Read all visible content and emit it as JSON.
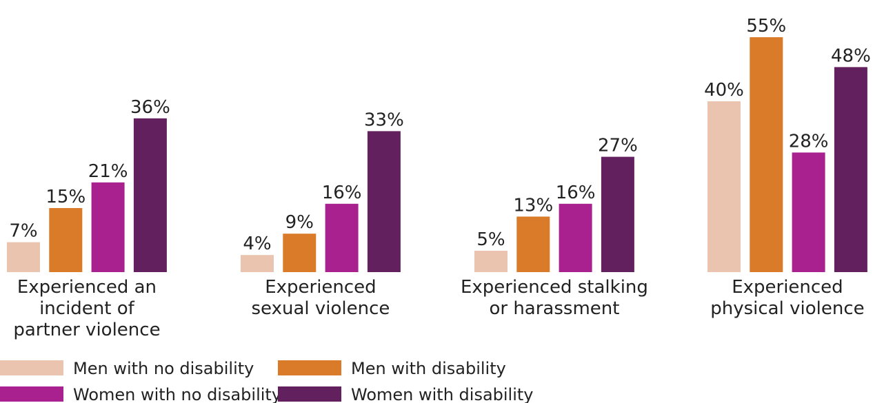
{
  "chart_data": {
    "type": "bar",
    "title": "",
    "xlabel": "",
    "ylabel": "",
    "ylim": [
      0,
      55
    ],
    "grid": false,
    "legend_position": "bottom",
    "categories": [
      [
        "Experienced an",
        "incident of",
        "partner violence"
      ],
      [
        "Experienced",
        "sexual violence"
      ],
      [
        "Experienced stalking",
        "or harassment"
      ],
      [
        "Experienced",
        "physical violence"
      ]
    ],
    "series": [
      {
        "name": "Men with no disability",
        "color": "#EBC4B0",
        "values": [
          7,
          4,
          5,
          40
        ]
      },
      {
        "name": "Men with disability",
        "color": "#D97B28",
        "values": [
          15,
          9,
          13,
          55
        ]
      },
      {
        "name": "Women with no disability",
        "color": "#A8218E",
        "values": [
          21,
          16,
          16,
          28
        ]
      },
      {
        "name": "Women with disability",
        "color": "#62205F",
        "values": [
          36,
          33,
          27,
          48
        ]
      }
    ],
    "value_suffix": "%"
  }
}
